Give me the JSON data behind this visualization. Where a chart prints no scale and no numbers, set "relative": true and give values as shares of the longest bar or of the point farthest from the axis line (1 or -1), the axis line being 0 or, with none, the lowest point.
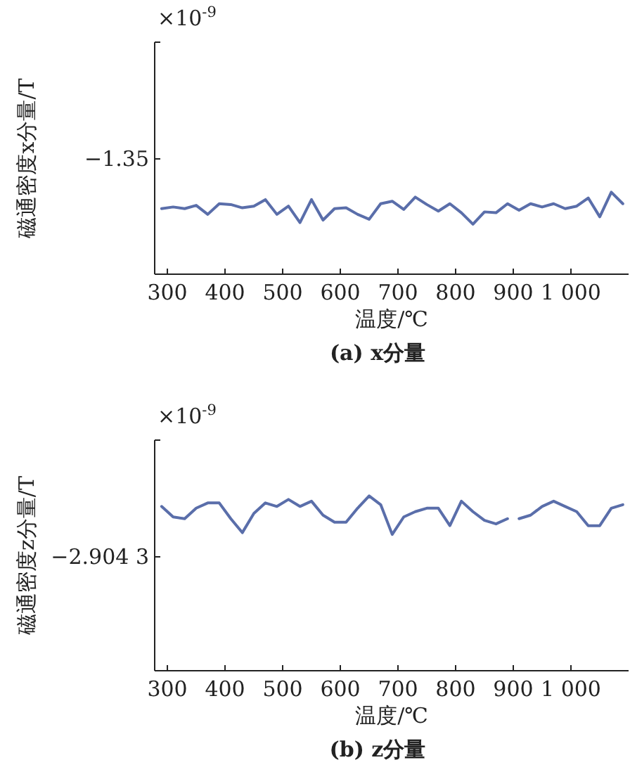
{
  "chart_data": [
    {
      "type": "line",
      "title": "(a) x分量",
      "xlabel": "温度/℃",
      "ylabel": "磁通密度x分量/T",
      "relative": true,
      "annotations": [
        "×10$^{-9}$",
        "−1.35"
      ],
      "color": "#5a6eaa",
      "xlim": [
        278,
        1100
      ],
      "xticks": [
        300,
        400,
        500,
        600,
        700,
        800,
        900,
        {
          "value": 1000,
          "label": "1 000"
        }
      ],
      "x": [
        290,
        310,
        330,
        350,
        370,
        390,
        410,
        430,
        450,
        470,
        490,
        510,
        530,
        550,
        570,
        590,
        610,
        630,
        650,
        670,
        690,
        710,
        730,
        750,
        770,
        790,
        810,
        830,
        850,
        870,
        890,
        910,
        930,
        950,
        970,
        990,
        1010,
        1030,
        1050,
        1070,
        1090
      ],
      "values": [
        0.8,
        0.82,
        0.8,
        0.84,
        0.73,
        0.86,
        0.85,
        0.81,
        0.83,
        0.91,
        0.73,
        0.83,
        0.63,
        0.91,
        0.66,
        0.8,
        0.81,
        0.73,
        0.67,
        0.86,
        0.89,
        0.79,
        0.94,
        0.85,
        0.77,
        0.86,
        0.75,
        0.61,
        0.76,
        0.75,
        0.86,
        0.78,
        0.86,
        0.82,
        0.86,
        0.8,
        0.83,
        0.93,
        0.7,
        1.0,
        0.86
      ]
    },
    {
      "type": "line",
      "title": "(b) z分量",
      "xlabel": "温度/℃",
      "ylabel": "磁通密度z分量/T",
      "relative": true,
      "annotations": [
        "×10$^{-9}$",
        "−2.904 3"
      ],
      "color": "#5a6eaa",
      "xlim": [
        278,
        1100
      ],
      "xticks": [
        300,
        400,
        500,
        600,
        700,
        800,
        900,
        {
          "value": 1000,
          "label": "1 000"
        }
      ],
      "x": [
        290,
        310,
        330,
        350,
        370,
        390,
        410,
        430,
        450,
        470,
        490,
        510,
        530,
        550,
        570,
        590,
        610,
        630,
        650,
        670,
        690,
        710,
        730,
        750,
        770,
        790,
        810,
        830,
        850,
        870,
        890,
        900,
        910,
        930,
        950,
        970,
        990,
        1010,
        1030,
        1050,
        1070,
        1090
      ],
      "values": [
        0.94,
        0.88,
        0.87,
        0.93,
        0.96,
        0.96,
        0.87,
        0.79,
        0.9,
        0.96,
        0.94,
        0.98,
        0.94,
        0.97,
        0.89,
        0.85,
        0.85,
        0.93,
        1.0,
        0.95,
        0.78,
        0.88,
        0.91,
        0.93,
        0.93,
        0.83,
        0.97,
        0.91,
        0.86,
        0.84,
        0.87,
        null,
        0.87,
        0.89,
        0.94,
        0.97,
        0.94,
        0.91,
        0.83,
        0.83,
        0.93,
        0.95
      ]
    }
  ]
}
